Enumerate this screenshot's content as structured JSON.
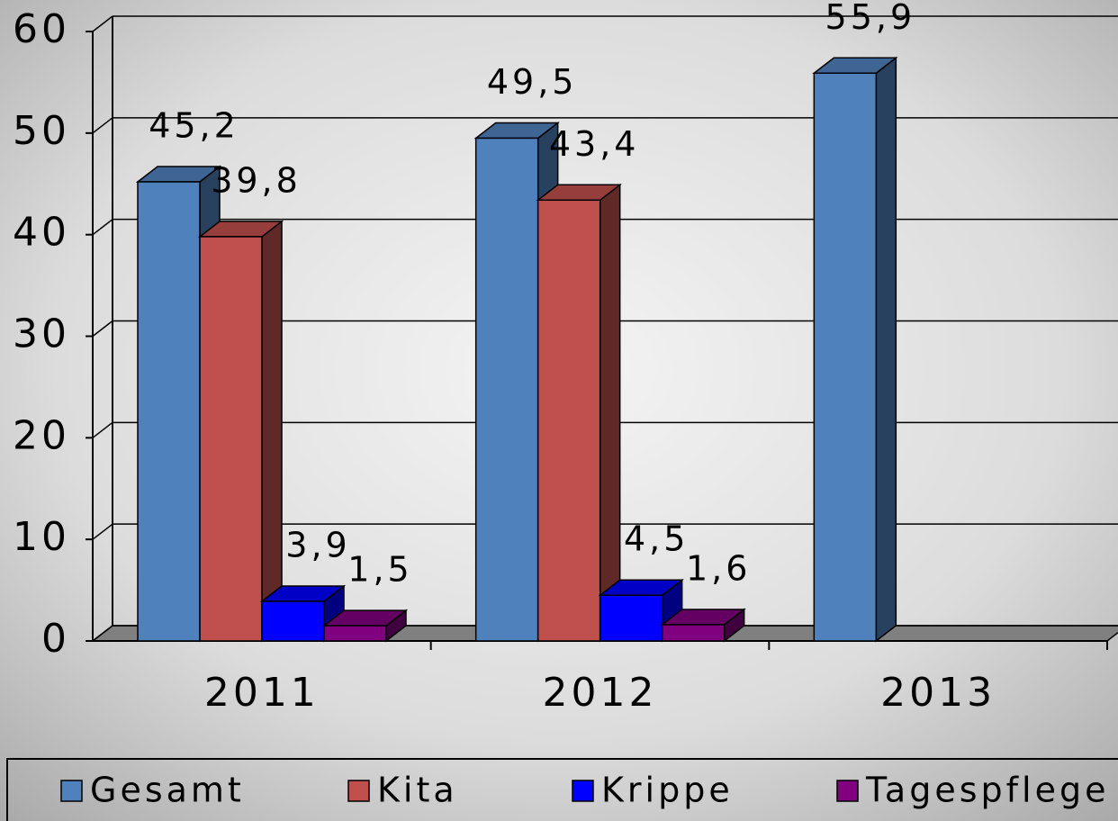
{
  "chart_data": {
    "type": "bar3d",
    "categories": [
      "2011",
      "2012",
      "2013"
    ],
    "series": [
      {
        "name": "Gesamt",
        "color": "#4f81bd",
        "values": [
          45.2,
          49.5,
          55.9
        ],
        "value_labels": [
          "45,2",
          "49,5",
          "55,9"
        ]
      },
      {
        "name": "Kita",
        "color": "#c0504d",
        "values": [
          39.8,
          43.4,
          null
        ],
        "value_labels": [
          "39,8",
          "43,4",
          null
        ]
      },
      {
        "name": "Krippe",
        "color": "#0000ff",
        "values": [
          3.9,
          4.5,
          null
        ],
        "value_labels": [
          "3,9",
          "4,5",
          null
        ]
      },
      {
        "name": "Tagespflege",
        "color": "#800080",
        "values": [
          1.5,
          1.6,
          null
        ],
        "value_labels": [
          "1,5",
          "1,6",
          null
        ]
      }
    ],
    "ylim": [
      0,
      60
    ],
    "yticks": [
      0,
      10,
      20,
      30,
      40,
      50,
      60
    ],
    "grid": true,
    "legend": "bottom"
  }
}
